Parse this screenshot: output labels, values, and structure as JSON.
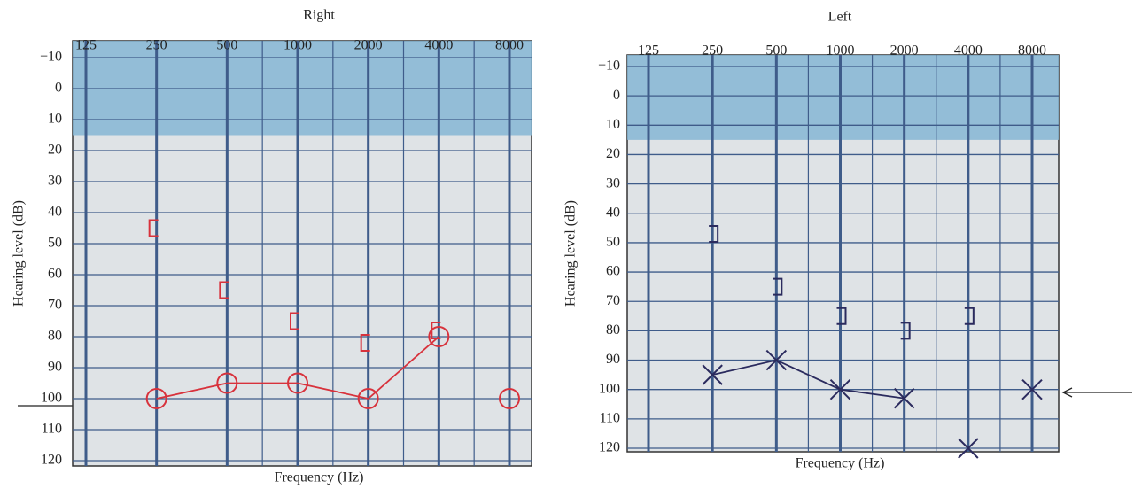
{
  "chart_data": [
    {
      "type": "line",
      "title": "Right",
      "xlabel": "Frequency (Hz)",
      "ylabel": "Hearing level (dB)",
      "categories": [
        "125",
        "250",
        "500",
        "1000",
        "2000",
        "4000",
        "8000"
      ],
      "ylim": [
        120,
        -10
      ],
      "yticks": [
        {
          "value": -10,
          "label": "−10"
        },
        0,
        10,
        20,
        30,
        40,
        50,
        60,
        70,
        80,
        90,
        100,
        110,
        120
      ],
      "shade": {
        "from": -10,
        "to": 15,
        "color": "#86b6d3"
      },
      "series": [
        {
          "color": "#d8323c",
          "marker": "circle",
          "line": true,
          "values": [
            null,
            100,
            95,
            95,
            100,
            80,
            null
          ]
        },
        {
          "color": "#d8323c",
          "marker": "circle",
          "line": false,
          "values": [
            null,
            null,
            null,
            null,
            null,
            null,
            100
          ]
        },
        {
          "color": "#d8323c",
          "marker": "bracket-left",
          "line": false,
          "values": [
            null,
            45,
            65,
            75,
            82,
            78,
            null
          ]
        }
      ]
    },
    {
      "type": "line",
      "title": "Left",
      "xlabel": "Frequency (Hz)",
      "ylabel": "Hearing level (dB)",
      "categories": [
        "125",
        "250",
        "500",
        "1000",
        "2000",
        "4000",
        "8000"
      ],
      "ylim": [
        120,
        -10
      ],
      "yticks": [
        {
          "value": -10,
          "label": "−10"
        },
        0,
        10,
        20,
        30,
        40,
        50,
        60,
        70,
        80,
        90,
        100,
        110,
        120
      ],
      "shade": {
        "from": -10,
        "to": 15,
        "color": "#86b6d3"
      },
      "series": [
        {
          "color": "#2b2b5e",
          "marker": "cross",
          "line": true,
          "values": [
            null,
            95,
            90,
            100,
            103,
            null,
            null
          ]
        },
        {
          "color": "#2b2b5e",
          "marker": "cross",
          "line": false,
          "values": [
            null,
            null,
            null,
            null,
            null,
            120,
            100
          ]
        },
        {
          "color": "#2b2b5e",
          "marker": "bracket-right",
          "line": false,
          "values": [
            null,
            47,
            65,
            75,
            80,
            75,
            null
          ]
        }
      ]
    }
  ]
}
